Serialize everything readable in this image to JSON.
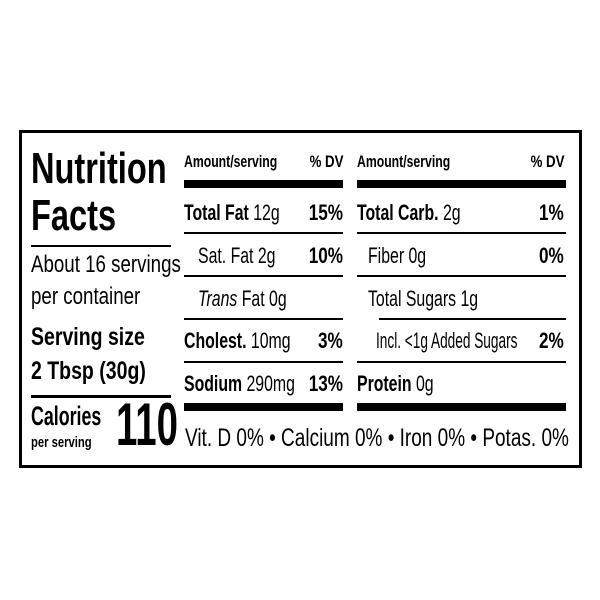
{
  "title_line1": "Nutrition",
  "title_line2": "Facts",
  "servings_line1": "About 16 servings",
  "servings_line2": "per container",
  "serving_size_label": "Serving size",
  "serving_size_value": "2 Tbsp (30g)",
  "calories_label": "Calories",
  "calories_sub": "per serving",
  "calories_value": "110",
  "left_table": {
    "header_amount": "Amount/serving",
    "header_dv": "% DV",
    "rows": [
      {
        "label": "Total Fat",
        "amount": "12g",
        "dv": "15%"
      },
      {
        "label": "Sat. Fat 2g",
        "dv": "10%"
      },
      {
        "label_italic": "Trans",
        "label": "Fat 0g"
      },
      {
        "label": "Cholest.",
        "amount": "10mg",
        "dv": "3%"
      },
      {
        "label": "Sodium",
        "amount": "290mg",
        "dv": "13%"
      }
    ]
  },
  "right_table": {
    "header_amount": "Amount/serving",
    "header_dv": "% DV",
    "rows": [
      {
        "label": "Total Carb.",
        "amount": "2g",
        "dv": "1%"
      },
      {
        "label": "Fiber 0g",
        "dv": "0%"
      },
      {
        "label": "Total Sugars 1g"
      },
      {
        "label": "Incl. <1g Added Sugars",
        "dv": "2%"
      },
      {
        "label": "Protein",
        "amount": "0g"
      }
    ]
  },
  "micronutrients": "Vit. D 0% • Calcium 0% • Iron 0% • Potas. 0%"
}
